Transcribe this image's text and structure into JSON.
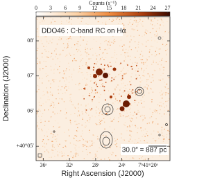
{
  "chart_data": {
    "type": "image",
    "annotation": "DDO46 : C-band RC on Hα",
    "scalebar": "30.0″ = 887 pc",
    "xlabel": "Right Ascension (J2000)",
    "ylabel": "Declination (J2000)",
    "xlim": [
      37.1,
      16.65
    ],
    "xticks": [
      {
        "value": 36,
        "label": "36ˢ"
      },
      {
        "value": 32,
        "label": "32ˢ"
      },
      {
        "value": 28,
        "label": "28ˢ"
      },
      {
        "value": 24,
        "label": "24ˢ"
      },
      {
        "value": 20,
        "label": "7ʰ41ᵐ20ˢ"
      }
    ],
    "ylim": [
      4.59,
      8.69
    ],
    "yticks": [
      {
        "value": 8,
        "label": "08′"
      },
      {
        "value": 7,
        "label": "07′"
      },
      {
        "value": 6,
        "label": "06′"
      },
      {
        "value": 5,
        "label": "+40°05′"
      }
    ],
    "colorbar": {
      "label": "Counts (s⁻¹)",
      "lim": [
        0,
        27.5
      ],
      "ticks": [
        0,
        3,
        6,
        9,
        12,
        15,
        18,
        21,
        24,
        27
      ]
    }
  }
}
